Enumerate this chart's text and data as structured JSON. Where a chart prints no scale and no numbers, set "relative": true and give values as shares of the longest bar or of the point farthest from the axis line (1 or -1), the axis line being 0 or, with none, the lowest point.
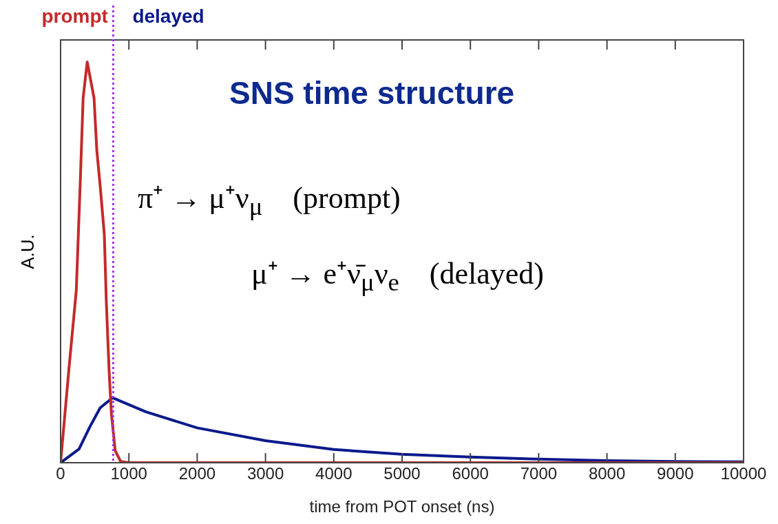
{
  "chart_data": {
    "type": "line",
    "title": "SNS time structure",
    "xlabel": "time from POT onset (ns)",
    "ylabel": "A.U.",
    "relative": true,
    "xlim": [
      0,
      10000
    ],
    "xticks": [
      0,
      1000,
      2000,
      3000,
      4000,
      5000,
      6000,
      7000,
      8000,
      9000,
      10000
    ],
    "grid": false,
    "legend": false,
    "marker": "none",
    "line_style": "solid",
    "series": [
      {
        "color": "#c42a2a",
        "x": [
          0,
          120,
          230,
          290,
          330,
          390,
          490,
          530,
          580,
          640,
          670,
          710,
          745,
          800,
          880,
          1000,
          2000,
          4000,
          6000,
          8000,
          10000
        ],
        "values": [
          0,
          0.23,
          0.43,
          0.71,
          0.91,
          1,
          0.91,
          0.78,
          0.69,
          0.57,
          0.4,
          0.23,
          0.12,
          0.03,
          0.003,
          0,
          0,
          0,
          0,
          0,
          0
        ]
      },
      {
        "color": "#0a1a8c",
        "x": [
          0,
          270,
          430,
          580,
          760,
          1250,
          2000,
          3000,
          4000,
          5000,
          6000,
          7000,
          8000,
          9000,
          10000
        ],
        "values": [
          0,
          0.034,
          0.09,
          0.137,
          0.162,
          0.127,
          0.087,
          0.055,
          0.033,
          0.021,
          0.014,
          0.009,
          0.005,
          0.003,
          0.002
        ]
      }
    ],
    "ref_lines": [
      {
        "axis": "x",
        "value": 770,
        "label": null,
        "color": "#9b30ff",
        "line_style": "dotted"
      }
    ],
    "annotations": [
      "prompt",
      "delayed",
      "π⁺ → μ⁺ν$_{μ}$    (prompt)",
      "μ⁺ → e⁺ν̄$_{μ}$ν$_{e}$    (delayed)"
    ]
  }
}
